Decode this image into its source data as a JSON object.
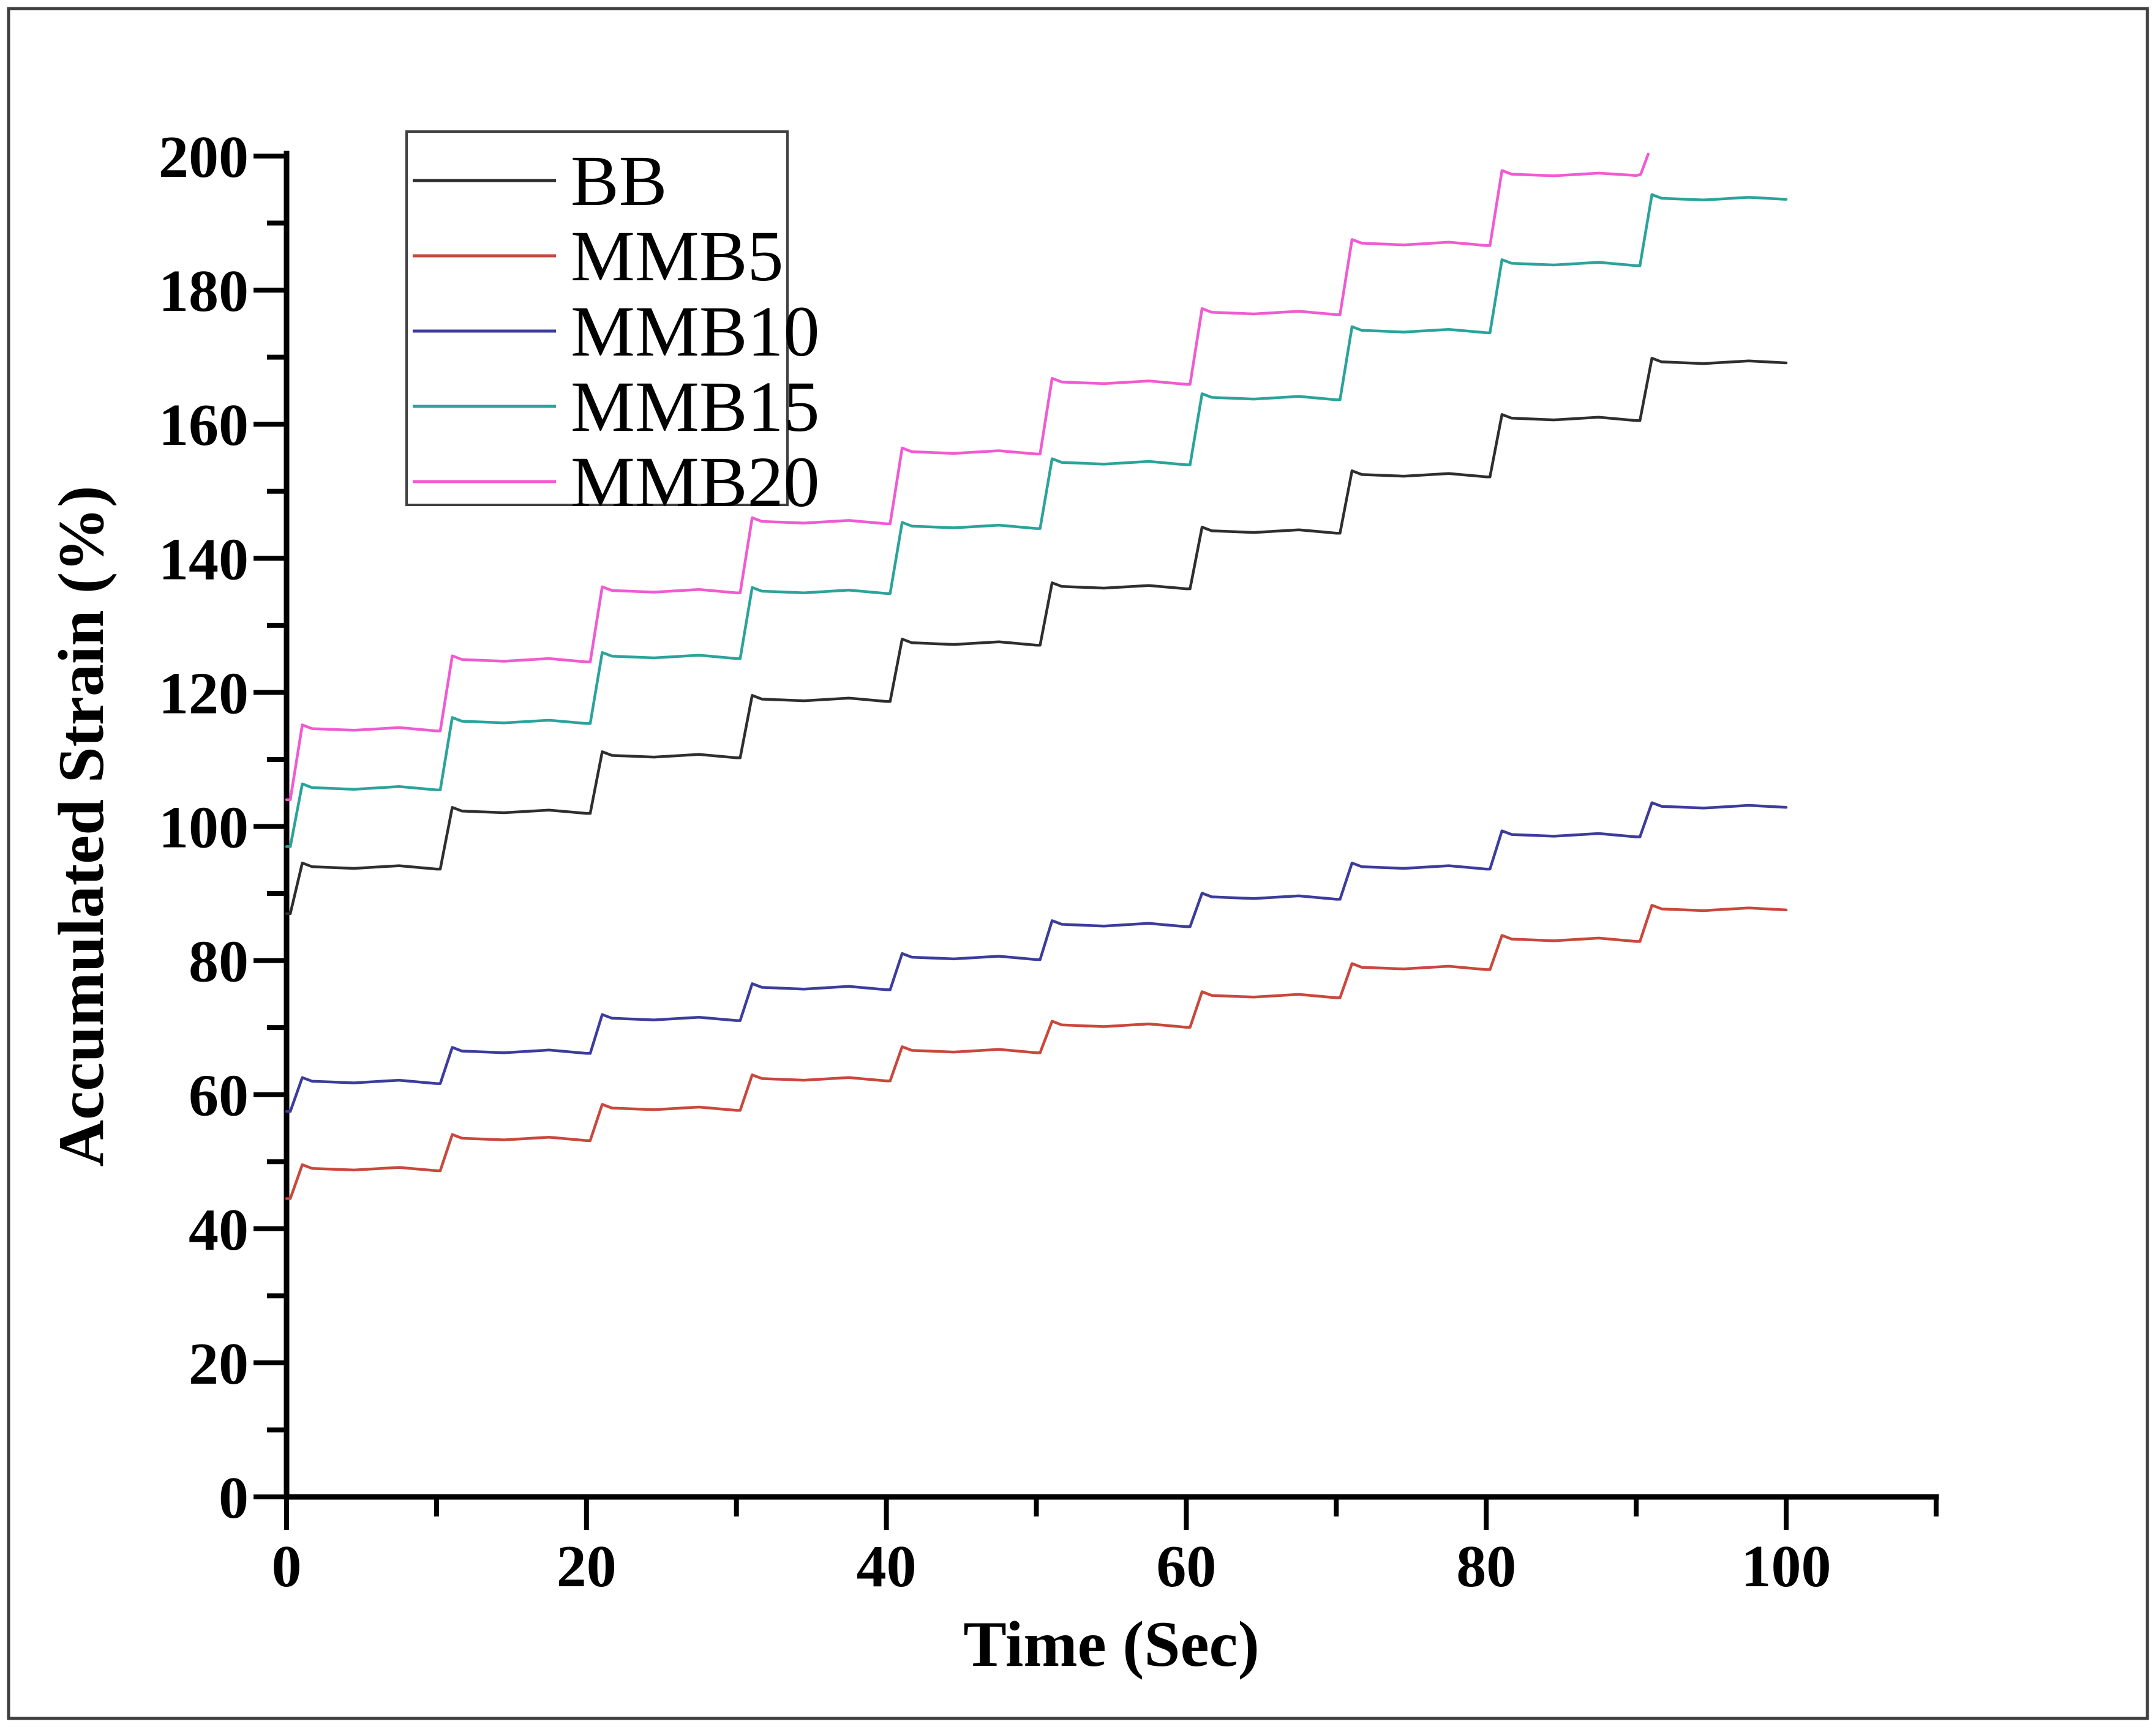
{
  "figure": {
    "background": "#ffffff",
    "border_color": "#3f3f3f"
  },
  "chart_data": {
    "type": "line",
    "title": "",
    "xlabel": "Time (Sec)",
    "ylabel": "Accumulated Strain (%)",
    "xlim": [
      0,
      110
    ],
    "ylim": [
      0,
      200
    ],
    "x_major_ticks": [
      0,
      20,
      40,
      60,
      80,
      100
    ],
    "x_minor_ticks": [
      10,
      30,
      50,
      70,
      90,
      110
    ],
    "y_major_ticks": [
      0,
      20,
      40,
      60,
      80,
      100,
      120,
      140,
      160,
      180,
      200
    ],
    "y_minor_ticks": [
      10,
      30,
      50,
      70,
      90,
      110,
      130,
      150,
      170,
      190
    ],
    "grid": false,
    "legend": {
      "position": "top-left",
      "entries": [
        "BB",
        "MMB5",
        "MMB10",
        "MMB15",
        "MMB20"
      ]
    },
    "step_interval_sec": 10,
    "step_description": "Each curve is a creep-recovery staircase: a sharp rise during the first ~1 s of every 10 s interval followed by a nearly flat plateau.",
    "series": [
      {
        "name": "BB",
        "color": "#2e2e2e",
        "start_value": 87,
        "plateaus": [
          94,
          102.3,
          110.6,
          119,
          127.4,
          135.8,
          144.1,
          152.5,
          160.9,
          169.3
        ],
        "end_time": 100
      },
      {
        "name": "MMB5",
        "color": "#c9473c",
        "start_value": 44.5,
        "plateaus": [
          49,
          53.5,
          58,
          62.4,
          66.6,
          70.4,
          74.8,
          79,
          83.2,
          87.7
        ],
        "end_time": 100
      },
      {
        "name": "MMB10",
        "color": "#3c3c9c",
        "start_value": 57.5,
        "plateaus": [
          62,
          66.5,
          71.4,
          76,
          80.5,
          85.4,
          89.5,
          94,
          98.8,
          103
        ],
        "end_time": 100
      },
      {
        "name": "MMB15",
        "color": "#2ba39b",
        "start_value": 97,
        "plateaus": [
          105.8,
          115.7,
          125.4,
          135.1,
          144.8,
          154.3,
          164,
          174,
          184,
          193.7
        ],
        "end_time": 100
      },
      {
        "name": "MMB20",
        "color": "#f05ad2",
        "start_value": 104,
        "plateaus": [
          114.6,
          124.9,
          135.2,
          145.5,
          155.9,
          166.3,
          176.7,
          187,
          197.3
        ],
        "final_spike": 200.3,
        "end_time": 90.8
      }
    ]
  }
}
